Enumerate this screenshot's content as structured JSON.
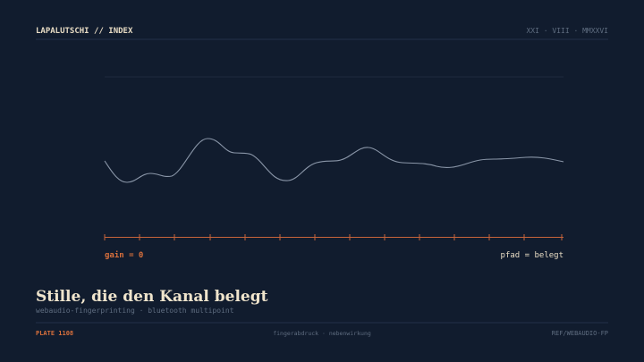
{
  "header": {
    "title": "LAPALUTSCHI // INDEX",
    "date": "XXI · VIII · MMXXVI"
  },
  "figure": {
    "left_label": "gain = 0",
    "right_label": "pfad = belegt"
  },
  "title": "Stille, die den Kanal belegt",
  "subtitle": "webaudio-fingerprinting · bluetooth multipoint",
  "footer": {
    "left": "PLATE 1108",
    "center": "fingerabdruck · nebenwirkung",
    "right": "REF/WEBAUDIO-FP"
  }
}
